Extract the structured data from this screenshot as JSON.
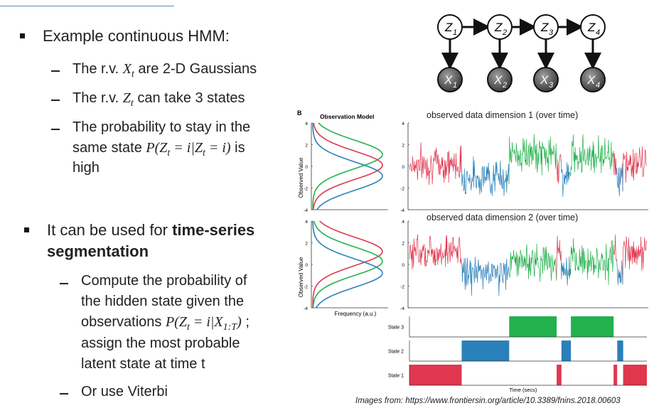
{
  "bullets": {
    "b1": "Example continuous HMM:",
    "s1_pre": "The r.v. ",
    "s1_var": "X",
    "s1_sub": "t",
    "s1_post": " are 2-D Gaussians",
    "s2_pre": "The r.v. ",
    "s2_var": "Z",
    "s2_sub": "t",
    "s2_post": " can take 3 states",
    "s3_line1": "The probability to stay in the",
    "s3_line2_pre": "same state ",
    "s3_line2_math": "P(Z",
    "s3_line2_math2": " = i|Z",
    "s3_line2_math3": " = i)",
    "s3_line2_post": " is",
    "s3_line3": "high",
    "b2_line1_pre": "It can be used for ",
    "b2_line1_bold": "time-series",
    "b2_line2_bold": "segmentation",
    "s4_line1": "Compute the probability of",
    "s4_line2": "the hidden state given the",
    "s4_line3_pre": "observations ",
    "s4_line3_math": "P(Z",
    "s4_line3_math2": " = i|X",
    "s4_line3_sub2": "1:T",
    "s4_line3_math3": ")",
    "s4_line3_post": " ;",
    "s4_line4": "assign the most probable",
    "s4_line5": "latent state at time t",
    "s5": "Or use Viterbi"
  },
  "hmm": {
    "z_nodes": [
      "Z1",
      "Z2",
      "Z3",
      "Z4"
    ],
    "x_nodes": [
      "X1",
      "X2",
      "X3",
      "X4"
    ],
    "z_letter": "Z",
    "x_letter": "X",
    "subs": [
      "1",
      "2",
      "3",
      "4"
    ]
  },
  "figure": {
    "panel_label": "B",
    "obs_model_title": "Observation Model",
    "obs_ylabel": "Observed Value",
    "obs_xlabel": "Frequency (a.u.)",
    "title_dim1": "observed data dimension 1 (over time)",
    "title_dim2": "observed data dimension 2 (over time)",
    "y_ticks": [
      "4",
      "2",
      "0",
      "-2",
      "-4"
    ],
    "states": [
      "State 3",
      "State 2",
      "State 1"
    ],
    "time_label": "Time (secs)",
    "colors": {
      "state1": "#e0364e",
      "state2": "#2a80b9",
      "state3": "#22b14c"
    }
  },
  "caption": "Images from: https://www.frontiersin.org/article/10.3389/fnins.2018.00603"
}
